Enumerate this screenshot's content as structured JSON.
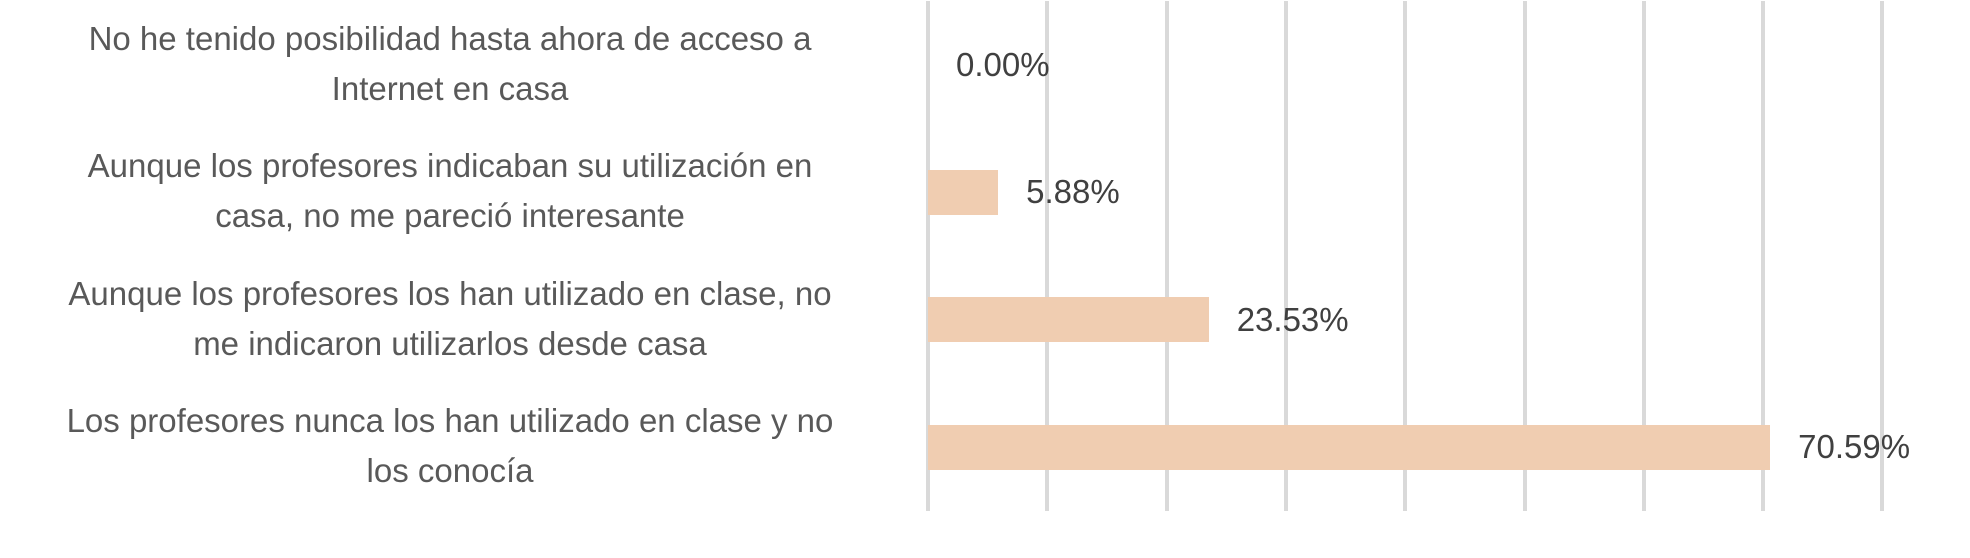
{
  "chart_data": {
    "type": "bar",
    "orientation": "horizontal",
    "title": "",
    "xlabel": "",
    "ylabel": "",
    "categories": [
      "No he tenido posibilidad hasta ahora de acceso a Internet en casa",
      "Aunque los profesores indicaban su utilización en casa, no me pareció interesante",
      "Aunque los profesores los han utilizado en clase, no me indicaron utilizarlos desde casa",
      "Los profesores nunca los han utilizado en clase y no los conocía"
    ],
    "category_lines": [
      [
        "No he tenido posibilidad hasta ahora de acceso a",
        "Internet en casa"
      ],
      [
        "Aunque los profesores indicaban su utilización en",
        "casa, no me pareció interesante"
      ],
      [
        "Aunque los profesores los han utilizado en clase, no",
        "me indicaron utilizarlos desde casa"
      ],
      [
        "Los profesores nunca los han utilizado en clase y no",
        "los conocía"
      ]
    ],
    "values": [
      0.0,
      5.88,
      23.53,
      70.59
    ],
    "value_labels": [
      "0.00%",
      "5.88%",
      "23.53%",
      "70.59%"
    ],
    "xlim": [
      0,
      80
    ],
    "x_tick_step": 10,
    "x_tick_labels_visible": false,
    "grid": "vertical",
    "legend": null,
    "colors": {
      "bar": "#F0CDB1",
      "gridline": "#D9D9D9",
      "category_text": "#595959",
      "value_text": "#404040"
    }
  }
}
